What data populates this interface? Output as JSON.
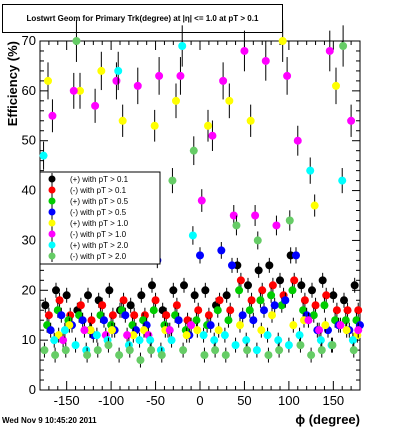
{
  "chart_data": {
    "type": "scatter",
    "title": "Lostwrt Geom for Primary Trk(degree) at |η| <= 1.0 at pT > 0.1",
    "xlabel": "ϕ (degree)",
    "ylabel": "Efficiency (%)",
    "xlim": [
      -180,
      180
    ],
    "ylim": [
      0,
      70
    ],
    "x_ticks": [
      -150,
      -100,
      -50,
      0,
      50,
      100,
      150
    ],
    "x_tick_labels": [
      "-150",
      "-100",
      "-50",
      "0",
      "50",
      "100",
      "150"
    ],
    "y_ticks": [
      0,
      10,
      20,
      30,
      40,
      50,
      60,
      70
    ],
    "y_tick_labels": [
      "0",
      "10",
      "20",
      "30",
      "40",
      "50",
      "60",
      "70"
    ],
    "grid": false,
    "legend_position": "left-center",
    "series": [
      {
        "name": "(+) with pT > 0.1",
        "color": "#000000",
        "x": [
          -174,
          -162,
          -150,
          -138,
          -126,
          -114,
          -102,
          -90,
          -78,
          -66,
          -54,
          -42,
          -30,
          -18,
          -6,
          6,
          18,
          30,
          42,
          54,
          66,
          78,
          90,
          102,
          114,
          126,
          138,
          150,
          162,
          174
        ],
        "y": [
          17,
          20,
          19,
          16,
          19,
          18,
          20,
          16,
          17,
          19,
          21,
          16,
          20,
          21,
          19,
          20,
          17,
          19,
          25,
          21,
          24,
          25,
          22,
          27,
          21,
          20,
          22,
          19,
          18,
          21
        ]
      },
      {
        "name": "(-) with pT > 0.1",
        "color": "#ff0000",
        "x": [
          -170,
          -158,
          -146,
          -134,
          -122,
          -110,
          -98,
          -86,
          -74,
          -62,
          -50,
          -38,
          -26,
          -14,
          -2,
          10,
          22,
          34,
          46,
          58,
          70,
          82,
          94,
          106,
          118,
          130,
          142,
          154,
          166,
          178
        ],
        "y": [
          15,
          18,
          15,
          17,
          14,
          17,
          15,
          18,
          15,
          15,
          18,
          15,
          17,
          14,
          16,
          15,
          18,
          16,
          22,
          18,
          20,
          21,
          19,
          22,
          18,
          17,
          19,
          16,
          16,
          16
        ]
      },
      {
        "name": "(+) with pT > 0.5",
        "color": "#00cc00",
        "x": [
          -172,
          -160,
          -148,
          -136,
          -124,
          -112,
          -100,
          -88,
          -76,
          -64,
          -52,
          -40,
          -28,
          -16,
          -4,
          8,
          20,
          32,
          44,
          56,
          68,
          80,
          92,
          104,
          116,
          128,
          140,
          152,
          164,
          176
        ],
        "y": [
          13,
          16,
          14,
          15,
          12,
          15,
          13,
          16,
          13,
          14,
          16,
          13,
          15,
          12,
          14,
          13,
          16,
          14,
          20,
          16,
          18,
          19,
          17,
          20,
          16,
          15,
          17,
          14,
          14,
          14
        ]
      },
      {
        "name": "(-) with pT > 0.5",
        "color": "#0000ff",
        "x": [
          -168,
          -156,
          -144,
          -132,
          -120,
          -108,
          -96,
          -84,
          -72,
          -60,
          -48,
          -36,
          -24,
          -12,
          0,
          12,
          24,
          36,
          48,
          60,
          72,
          84,
          96,
          108,
          120,
          132,
          144,
          156,
          168,
          180
        ],
        "y": [
          12,
          15,
          13,
          14,
          11,
          14,
          12,
          15,
          12,
          13,
          26,
          12,
          14,
          11,
          27,
          13,
          28,
          25,
          15,
          14,
          16,
          17,
          18,
          27,
          15,
          12,
          12,
          13,
          12,
          13
        ]
      },
      {
        "name": "(+) with pT > 1.0",
        "color": "#ffff00",
        "x": [
          -171,
          -159,
          -147,
          -135,
          -123,
          -111,
          -99,
          -87,
          -75,
          -63,
          -51,
          -39,
          -27,
          -15,
          -3,
          9,
          21,
          33,
          45,
          57,
          69,
          81,
          93,
          105,
          117,
          129,
          141,
          153,
          165,
          177
        ],
        "y": [
          62,
          11,
          13,
          60,
          12,
          64,
          12,
          54,
          11,
          12,
          53,
          12,
          58,
          11,
          12,
          53,
          12,
          58,
          13,
          54,
          12,
          15,
          70,
          13,
          14,
          37,
          13,
          61,
          12,
          11
        ]
      },
      {
        "name": "(-) with pT > 1.0",
        "color": "#ff00ff",
        "x": [
          -166,
          -154,
          -142,
          -130,
          -118,
          -106,
          -94,
          -82,
          -70,
          -58,
          -46,
          -34,
          -22,
          -10,
          2,
          14,
          26,
          38,
          50,
          62,
          74,
          86,
          98,
          110,
          122,
          134,
          146,
          158,
          170,
          178
        ],
        "y": [
          55,
          10,
          60,
          12,
          57,
          11,
          62,
          11,
          61,
          11,
          63,
          12,
          63,
          13,
          38,
          51,
          62,
          35,
          68,
          35,
          66,
          33,
          63,
          50,
          14,
          12,
          68,
          13,
          54,
          12
        ]
      },
      {
        "name": "(+) with pT > 2.0",
        "color": "#00ffff",
        "x": [
          -176,
          -164,
          -152,
          -140,
          -128,
          -116,
          -104,
          -92,
          -80,
          -68,
          -56,
          -44,
          -32,
          -20,
          -8,
          4,
          16,
          28,
          40,
          52,
          64,
          76,
          88,
          100,
          112,
          124,
          136,
          148,
          160,
          172
        ],
        "y": [
          47,
          10,
          12,
          9,
          8,
          11,
          10,
          64,
          9,
          10,
          10,
          8,
          10,
          69,
          31,
          11,
          10,
          11,
          9,
          10,
          8,
          11,
          10,
          9,
          11,
          44,
          10,
          9,
          42,
          10
        ]
      },
      {
        "name": "(-) with pT > 2.0",
        "color": "#66cc66",
        "x": [
          -175,
          -163,
          -151,
          -139,
          -127,
          -115,
          -103,
          -91,
          -79,
          -67,
          -55,
          -43,
          -31,
          -19,
          -7,
          5,
          17,
          29,
          41,
          53,
          65,
          77,
          89,
          101,
          113,
          125,
          137,
          149,
          161,
          173
        ],
        "y": [
          8,
          7,
          8,
          70,
          7,
          8,
          9,
          7,
          8,
          6,
          8,
          7,
          42,
          8,
          48,
          7,
          8,
          7,
          33,
          8,
          30,
          7,
          8,
          34,
          9,
          7,
          8,
          9,
          69,
          8
        ]
      }
    ]
  },
  "footer": {
    "timestamp": "Wed Nov  9 10:45:20 2011"
  }
}
